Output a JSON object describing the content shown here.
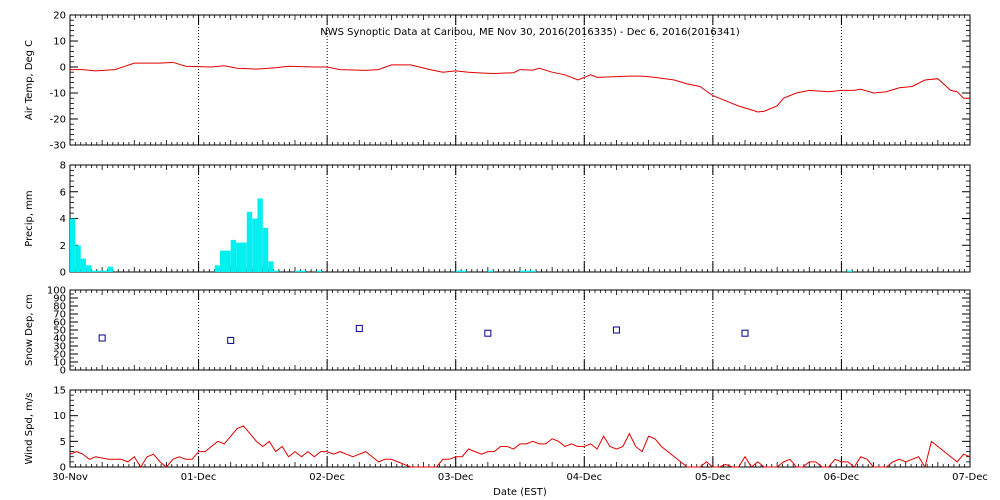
{
  "figure": {
    "title": "NWS Synoptic Data at Caribou, ME   Nov 30, 2016(2016335) - Dec  6, 2016(2016341)",
    "xlabel": "Date (EST)",
    "x_tick_labels": [
      "30-Nov",
      "01-Dec",
      "02-Dec",
      "03-Dec",
      "04-Dec",
      "05-Dec",
      "06-Dec",
      "07-Dec"
    ],
    "colors": {
      "line": "#e00000",
      "bar": "#00f0f0",
      "marker": "#00008b",
      "axis": "#000000"
    }
  },
  "chart_data": [
    {
      "type": "line",
      "ylabel": "Air Temp, Deg C",
      "ylim": [
        -30,
        20
      ],
      "yticks": [
        -30,
        -20,
        -10,
        0,
        10,
        20
      ],
      "x_unit": "days since 30-Nov 00:00 EST",
      "series": [
        {
          "points": [
            [
              0,
              -1
            ],
            [
              0.1,
              -1
            ],
            [
              0.2,
              -1.5
            ],
            [
              0.35,
              -1
            ],
            [
              0.5,
              1.5
            ],
            [
              0.7,
              1.5
            ],
            [
              0.8,
              1.8
            ],
            [
              0.9,
              0.3
            ],
            [
              1.1,
              0
            ],
            [
              1.2,
              0.5
            ],
            [
              1.3,
              -0.5
            ],
            [
              1.45,
              -0.8
            ],
            [
              1.6,
              -0.3
            ],
            [
              1.7,
              0.3
            ],
            [
              1.9,
              0
            ],
            [
              2.0,
              0
            ],
            [
              2.1,
              -1
            ],
            [
              2.3,
              -1.3
            ],
            [
              2.4,
              -1
            ],
            [
              2.5,
              0.8
            ],
            [
              2.65,
              0.8
            ],
            [
              2.8,
              -1
            ],
            [
              2.9,
              -2
            ],
            [
              3.0,
              -1.5
            ],
            [
              3.1,
              -2
            ],
            [
              3.2,
              -2.3
            ],
            [
              3.3,
              -2.5
            ],
            [
              3.45,
              -2.2
            ],
            [
              3.5,
              -1
            ],
            [
              3.6,
              -1.2
            ],
            [
              3.65,
              -0.5
            ],
            [
              3.75,
              -2
            ],
            [
              3.85,
              -3
            ],
            [
              3.95,
              -5
            ],
            [
              4.05,
              -3
            ],
            [
              4.1,
              -4
            ],
            [
              4.2,
              -3.8
            ],
            [
              4.35,
              -3.5
            ],
            [
              4.45,
              -3.5
            ],
            [
              4.55,
              -4
            ],
            [
              4.7,
              -5
            ],
            [
              4.8,
              -6.5
            ],
            [
              4.9,
              -7.5
            ],
            [
              5.0,
              -11
            ],
            [
              5.1,
              -13
            ],
            [
              5.2,
              -15
            ],
            [
              5.3,
              -16.5
            ],
            [
              5.35,
              -17.3
            ],
            [
              5.4,
              -17
            ],
            [
              5.5,
              -15
            ],
            [
              5.55,
              -12
            ],
            [
              5.65,
              -10
            ],
            [
              5.75,
              -9
            ],
            [
              5.9,
              -9.5
            ],
            [
              6.0,
              -9
            ],
            [
              6.1,
              -9
            ],
            [
              6.15,
              -8.5
            ],
            [
              6.25,
              -10
            ],
            [
              6.35,
              -9.5
            ],
            [
              6.45,
              -8
            ],
            [
              6.55,
              -7.5
            ],
            [
              6.65,
              -5
            ],
            [
              6.75,
              -4.5
            ],
            [
              6.85,
              -9
            ],
            [
              6.9,
              -9.5
            ],
            [
              6.95,
              -12
            ],
            [
              7.0,
              -12
            ]
          ]
        }
      ]
    },
    {
      "type": "bar",
      "ylabel": "Precip, mm",
      "ylim": [
        0,
        8
      ],
      "yticks": [
        0,
        2,
        4,
        6,
        8
      ],
      "x_unit": "days since 30-Nov 00:00 EST",
      "bar_width_days": 0.04167,
      "series": [
        {
          "bars": [
            [
              0.0,
              4.0
            ],
            [
              0.042,
              2.0
            ],
            [
              0.083,
              1.0
            ],
            [
              0.125,
              0.5
            ],
            [
              0.167,
              0.1
            ],
            [
              0.208,
              0.1
            ],
            [
              0.25,
              0.1
            ],
            [
              0.292,
              0.4
            ],
            [
              1.125,
              0.5
            ],
            [
              1.167,
              1.6
            ],
            [
              1.208,
              1.6
            ],
            [
              1.25,
              2.4
            ],
            [
              1.292,
              2.2
            ],
            [
              1.333,
              2.2
            ],
            [
              1.375,
              4.5
            ],
            [
              1.417,
              4.0
            ],
            [
              1.458,
              5.5
            ],
            [
              1.5,
              3.3
            ],
            [
              1.542,
              0.8
            ],
            [
              1.583,
              0.1
            ],
            [
              1.75,
              0.1
            ],
            [
              1.792,
              0.1
            ],
            [
              1.917,
              0.1
            ],
            [
              3.0,
              0.1
            ],
            [
              3.042,
              0.1
            ],
            [
              3.25,
              0.1
            ],
            [
              3.5,
              0.1
            ],
            [
              3.542,
              0.1
            ],
            [
              3.583,
              0.1
            ],
            [
              6.042,
              0.1
            ]
          ]
        }
      ]
    },
    {
      "type": "scatter",
      "ylabel": "Snow Dep, cm",
      "ylim": [
        0,
        100
      ],
      "yticks": [
        0,
        10,
        20,
        30,
        40,
        50,
        60,
        70,
        80,
        90,
        100
      ],
      "x_unit": "days since 30-Nov 00:00 EST",
      "series": [
        {
          "points": [
            [
              0.25,
              40
            ],
            [
              1.25,
              37
            ],
            [
              2.25,
              52
            ],
            [
              3.25,
              46
            ],
            [
              4.25,
              50
            ],
            [
              5.25,
              46
            ]
          ]
        }
      ]
    },
    {
      "type": "line",
      "ylabel": "Wind Spd, m/s",
      "ylim": [
        0,
        15
      ],
      "yticks": [
        0,
        5,
        10,
        15
      ],
      "x_unit": "days since 30-Nov 00:00 EST",
      "series": [
        {
          "points": [
            [
              0,
              2.5
            ],
            [
              0.05,
              3
            ],
            [
              0.1,
              2.5
            ],
            [
              0.15,
              1.5
            ],
            [
              0.2,
              2
            ],
            [
              0.3,
              1.5
            ],
            [
              0.4,
              1.5
            ],
            [
              0.45,
              1
            ],
            [
              0.5,
              2
            ],
            [
              0.55,
              0
            ],
            [
              0.6,
              2
            ],
            [
              0.65,
              2.5
            ],
            [
              0.7,
              1
            ],
            [
              0.75,
              0
            ],
            [
              0.8,
              1.5
            ],
            [
              0.85,
              2
            ],
            [
              0.9,
              1.5
            ],
            [
              0.95,
              1.5
            ],
            [
              1.0,
              3
            ],
            [
              1.05,
              3
            ],
            [
              1.1,
              4
            ],
            [
              1.15,
              5
            ],
            [
              1.2,
              4.5
            ],
            [
              1.25,
              6
            ],
            [
              1.3,
              7.5
            ],
            [
              1.35,
              8
            ],
            [
              1.4,
              6.5
            ],
            [
              1.45,
              5
            ],
            [
              1.5,
              4
            ],
            [
              1.55,
              5
            ],
            [
              1.6,
              3
            ],
            [
              1.65,
              4
            ],
            [
              1.7,
              2
            ],
            [
              1.75,
              3
            ],
            [
              1.8,
              2
            ],
            [
              1.85,
              3
            ],
            [
              1.9,
              2
            ],
            [
              1.95,
              3
            ],
            [
              2.0,
              3
            ],
            [
              2.05,
              2.5
            ],
            [
              2.1,
              3
            ],
            [
              2.15,
              2.5
            ],
            [
              2.2,
              2
            ],
            [
              2.25,
              2.5
            ],
            [
              2.3,
              3
            ],
            [
              2.35,
              2
            ],
            [
              2.4,
              1
            ],
            [
              2.45,
              1.5
            ],
            [
              2.5,
              1.5
            ],
            [
              2.55,
              1
            ],
            [
              2.6,
              0.5
            ],
            [
              2.65,
              0
            ],
            [
              2.7,
              0
            ],
            [
              2.75,
              0
            ],
            [
              2.85,
              0
            ],
            [
              2.9,
              1.5
            ],
            [
              2.95,
              1.5
            ],
            [
              3.0,
              2
            ],
            [
              3.05,
              2
            ],
            [
              3.1,
              3.5
            ],
            [
              3.15,
              3
            ],
            [
              3.2,
              2.5
            ],
            [
              3.25,
              3
            ],
            [
              3.3,
              3
            ],
            [
              3.35,
              4
            ],
            [
              3.4,
              4
            ],
            [
              3.45,
              3.5
            ],
            [
              3.5,
              4.5
            ],
            [
              3.55,
              4.5
            ],
            [
              3.6,
              5
            ],
            [
              3.65,
              4.5
            ],
            [
              3.7,
              4.5
            ],
            [
              3.75,
              5.5
            ],
            [
              3.8,
              5
            ],
            [
              3.85,
              4
            ],
            [
              3.9,
              4.5
            ],
            [
              3.95,
              4
            ],
            [
              4.0,
              4
            ],
            [
              4.05,
              4.5
            ],
            [
              4.1,
              3.5
            ],
            [
              4.15,
              6
            ],
            [
              4.2,
              4
            ],
            [
              4.25,
              3.5
            ],
            [
              4.3,
              4
            ],
            [
              4.35,
              6.5
            ],
            [
              4.4,
              4
            ],
            [
              4.45,
              3
            ],
            [
              4.5,
              6
            ],
            [
              4.55,
              5.5
            ],
            [
              4.6,
              4
            ],
            [
              4.65,
              3
            ],
            [
              4.7,
              2
            ],
            [
              4.75,
              1
            ],
            [
              4.8,
              0
            ],
            [
              4.9,
              0
            ],
            [
              4.95,
              1
            ],
            [
              5.0,
              0
            ],
            [
              5.05,
              0
            ],
            [
              5.1,
              0.5
            ],
            [
              5.15,
              0
            ],
            [
              5.2,
              0
            ],
            [
              5.25,
              2
            ],
            [
              5.3,
              0
            ],
            [
              5.35,
              1
            ],
            [
              5.4,
              0
            ],
            [
              5.5,
              0
            ],
            [
              5.55,
              1
            ],
            [
              5.6,
              1.5
            ],
            [
              5.65,
              0
            ],
            [
              5.7,
              0
            ],
            [
              5.75,
              1
            ],
            [
              5.8,
              1
            ],
            [
              5.85,
              0
            ],
            [
              5.9,
              0
            ],
            [
              5.95,
              1.5
            ],
            [
              6.0,
              1
            ],
            [
              6.05,
              1
            ],
            [
              6.1,
              0
            ],
            [
              6.15,
              2
            ],
            [
              6.2,
              1.5
            ],
            [
              6.25,
              0
            ],
            [
              6.3,
              0
            ],
            [
              6.35,
              0
            ],
            [
              6.4,
              1
            ],
            [
              6.45,
              1.5
            ],
            [
              6.5,
              1
            ],
            [
              6.55,
              1.5
            ],
            [
              6.6,
              2
            ],
            [
              6.65,
              0
            ],
            [
              6.7,
              5
            ],
            [
              6.75,
              4
            ],
            [
              6.8,
              3
            ],
            [
              6.85,
              2
            ],
            [
              6.9,
              1
            ],
            [
              6.95,
              2.5
            ],
            [
              7.0,
              2
            ]
          ]
        }
      ]
    }
  ]
}
